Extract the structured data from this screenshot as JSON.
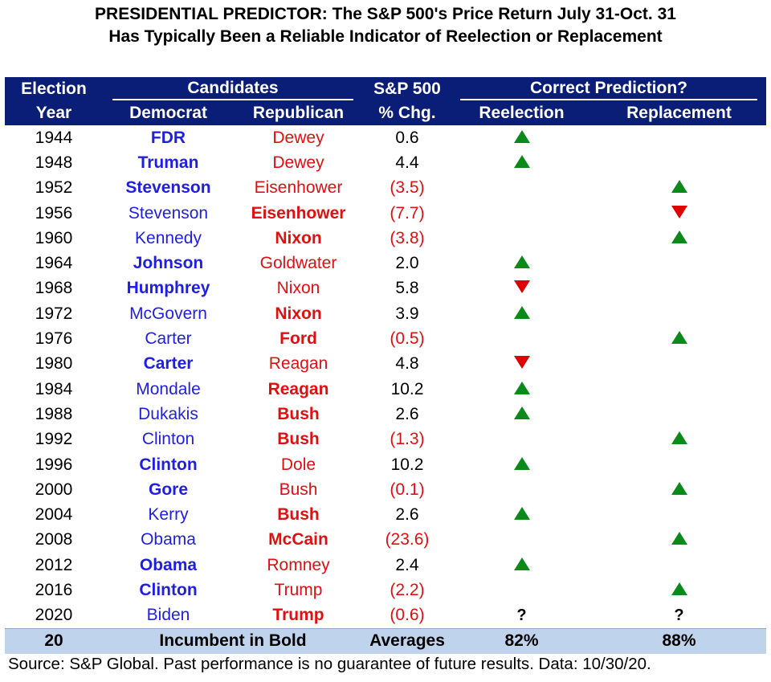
{
  "title": {
    "line1": "PRESIDENTIAL PREDICTOR: The S&P 500's Price Return July 31-Oct. 31",
    "line2": "Has Typically Been a Reliable Indicator of Reelection or Replacement"
  },
  "header": {
    "election": "Election",
    "year": "Year",
    "candidates": "Candidates",
    "democrat": "Democrat",
    "republican": "Republican",
    "sp500": "S&P 500",
    "pct_chg": "% Chg.",
    "correct": "Correct Prediction?",
    "reelection": "Reelection",
    "replacement": "Replacement"
  },
  "rows": [
    {
      "year": "1944",
      "dem": "FDR",
      "dem_bold": true,
      "rep": "Dewey",
      "rep_bold": false,
      "chg": "0.6",
      "neg": false,
      "re": "up",
      "rp": ""
    },
    {
      "year": "1948",
      "dem": "Truman",
      "dem_bold": true,
      "rep": "Dewey",
      "rep_bold": false,
      "chg": "4.4",
      "neg": false,
      "re": "up",
      "rp": ""
    },
    {
      "year": "1952",
      "dem": "Stevenson",
      "dem_bold": true,
      "rep": "Eisenhower",
      "rep_bold": false,
      "chg": "(3.5)",
      "neg": true,
      "re": "",
      "rp": "up"
    },
    {
      "year": "1956",
      "dem": "Stevenson",
      "dem_bold": false,
      "rep": "Eisenhower",
      "rep_bold": true,
      "chg": "(7.7)",
      "neg": true,
      "re": "",
      "rp": "down"
    },
    {
      "year": "1960",
      "dem": "Kennedy",
      "dem_bold": false,
      "rep": "Nixon",
      "rep_bold": true,
      "chg": "(3.8)",
      "neg": true,
      "re": "",
      "rp": "up"
    },
    {
      "year": "1964",
      "dem": "Johnson",
      "dem_bold": true,
      "rep": "Goldwater",
      "rep_bold": false,
      "chg": "2.0",
      "neg": false,
      "re": "up",
      "rp": ""
    },
    {
      "year": "1968",
      "dem": "Humphrey",
      "dem_bold": true,
      "rep": "Nixon",
      "rep_bold": false,
      "chg": "5.8",
      "neg": false,
      "re": "down",
      "rp": ""
    },
    {
      "year": "1972",
      "dem": "McGovern",
      "dem_bold": false,
      "rep": "Nixon",
      "rep_bold": true,
      "chg": "3.9",
      "neg": false,
      "re": "up",
      "rp": ""
    },
    {
      "year": "1976",
      "dem": "Carter",
      "dem_bold": false,
      "rep": "Ford",
      "rep_bold": true,
      "chg": "(0.5)",
      "neg": true,
      "re": "",
      "rp": "up"
    },
    {
      "year": "1980",
      "dem": "Carter",
      "dem_bold": true,
      "rep": "Reagan",
      "rep_bold": false,
      "chg": "4.8",
      "neg": false,
      "re": "down",
      "rp": ""
    },
    {
      "year": "1984",
      "dem": "Mondale",
      "dem_bold": false,
      "rep": "Reagan",
      "rep_bold": true,
      "chg": "10.2",
      "neg": false,
      "re": "up",
      "rp": ""
    },
    {
      "year": "1988",
      "dem": "Dukakis",
      "dem_bold": false,
      "rep": "Bush",
      "rep_bold": true,
      "chg": "2.6",
      "neg": false,
      "re": "up",
      "rp": ""
    },
    {
      "year": "1992",
      "dem": "Clinton",
      "dem_bold": false,
      "rep": "Bush",
      "rep_bold": true,
      "chg": "(1.3)",
      "neg": true,
      "re": "",
      "rp": "up"
    },
    {
      "year": "1996",
      "dem": "Clinton",
      "dem_bold": true,
      "rep": "Dole",
      "rep_bold": false,
      "chg": "10.2",
      "neg": false,
      "re": "up",
      "rp": ""
    },
    {
      "year": "2000",
      "dem": "Gore",
      "dem_bold": true,
      "rep": "Bush",
      "rep_bold": false,
      "chg": "(0.1)",
      "neg": true,
      "re": "",
      "rp": "up"
    },
    {
      "year": "2004",
      "dem": "Kerry",
      "dem_bold": false,
      "rep": "Bush",
      "rep_bold": true,
      "chg": "2.6",
      "neg": false,
      "re": "up",
      "rp": ""
    },
    {
      "year": "2008",
      "dem": "Obama",
      "dem_bold": false,
      "rep": "McCain",
      "rep_bold": true,
      "chg": "(23.6)",
      "neg": true,
      "re": "",
      "rp": "up"
    },
    {
      "year": "2012",
      "dem": "Obama",
      "dem_bold": true,
      "rep": "Romney",
      "rep_bold": false,
      "chg": "2.4",
      "neg": false,
      "re": "up",
      "rp": ""
    },
    {
      "year": "2016",
      "dem": "Clinton",
      "dem_bold": true,
      "rep": "Trump",
      "rep_bold": false,
      "chg": "(2.2)",
      "neg": true,
      "re": "",
      "rp": "up"
    },
    {
      "year": "2020",
      "dem": "Biden",
      "dem_bold": false,
      "rep": "Trump",
      "rep_bold": true,
      "chg": "(0.6)",
      "neg": true,
      "re": "?",
      "rp": "?"
    }
  ],
  "footer": {
    "count": "20",
    "note": "Incumbent in Bold",
    "averages": "Averages",
    "reelection_pct": "82%",
    "replacement_pct": "88%"
  },
  "source": "Source: S&P Global. Past performance is no guarantee of future results. Data: 10/30/20.",
  "colors": {
    "header_bg": "#0a1e78",
    "democrat": "#1f1fe0",
    "republican": "#e01010",
    "up_arrow": "#0a8a1a",
    "down_arrow": "#e00000",
    "footer_bg": "#bfd3ec"
  }
}
